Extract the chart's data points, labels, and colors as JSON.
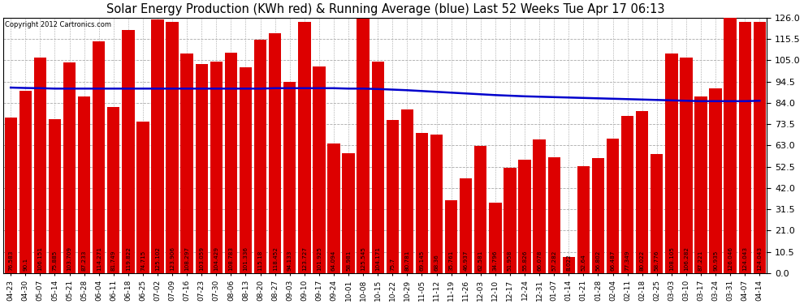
{
  "title": "Solar Energy Production (KWh red) & Running Average (blue) Last 52 Weeks Tue Apr 17 06:13",
  "copyright": "Copyright 2012 Cartronics.com",
  "bar_color": "#dd0000",
  "avg_line_color": "#0000cc",
  "background_color": "#ffffff",
  "grid_color": "#aaaaaa",
  "ylim": [
    0,
    126.0
  ],
  "yticks": [
    0.0,
    10.5,
    21.0,
    31.5,
    42.0,
    52.5,
    63.0,
    73.5,
    84.0,
    94.5,
    105.0,
    115.5,
    126.0
  ],
  "dates": [
    "04-23",
    "04-30",
    "05-07",
    "05-14",
    "05-21",
    "05-28",
    "06-04",
    "06-11",
    "06-18",
    "06-25",
    "07-02",
    "07-09",
    "07-16",
    "07-23",
    "07-30",
    "08-06",
    "08-13",
    "08-20",
    "08-27",
    "09-03",
    "09-10",
    "09-17",
    "09-24",
    "10-01",
    "10-08",
    "10-15",
    "10-22",
    "10-29",
    "11-05",
    "11-12",
    "11-19",
    "11-26",
    "12-03",
    "12-10",
    "12-17",
    "12-24",
    "12-31",
    "01-07",
    "01-14",
    "01-21",
    "01-28",
    "02-04",
    "02-11",
    "02-18",
    "02-25",
    "03-03",
    "03-10",
    "03-17",
    "03-24",
    "03-31",
    "04-07",
    "04-14"
  ],
  "values": [
    76.583,
    90.1,
    106.151,
    75.885,
    103.709,
    87.233,
    114.271,
    81.749,
    119.822,
    74.715,
    125.102,
    123.906,
    108.297,
    103.059,
    104.429,
    108.783,
    101.336,
    115.18,
    118.452,
    94.133,
    123.727,
    101.925,
    64.094,
    58.981,
    125.545,
    104.171,
    75.7,
    80.781,
    69.145,
    68.36,
    35.761,
    46.937,
    62.581,
    34.796,
    51.958,
    55.826,
    66.078,
    57.282,
    8.022,
    52.64,
    56.802,
    66.487,
    77.349,
    80.022,
    58.776,
    108.105,
    106.282,
    87.221,
    90.935,
    126.046,
    124.043,
    124.043
  ],
  "avg_values": [
    91.5,
    91.3,
    91.2,
    91.0,
    91.0,
    91.0,
    91.0,
    91.0,
    91.0,
    91.0,
    91.0,
    91.0,
    91.0,
    91.0,
    91.0,
    91.0,
    91.0,
    91.0,
    91.2,
    91.2,
    91.2,
    91.2,
    91.2,
    91.0,
    91.0,
    90.8,
    90.5,
    90.2,
    89.8,
    89.4,
    89.0,
    88.6,
    88.2,
    87.8,
    87.5,
    87.2,
    87.0,
    86.8,
    86.6,
    86.4,
    86.2,
    86.0,
    85.8,
    85.6,
    85.4,
    85.2,
    85.0,
    84.8,
    84.8,
    84.8,
    84.8,
    85.0
  ]
}
